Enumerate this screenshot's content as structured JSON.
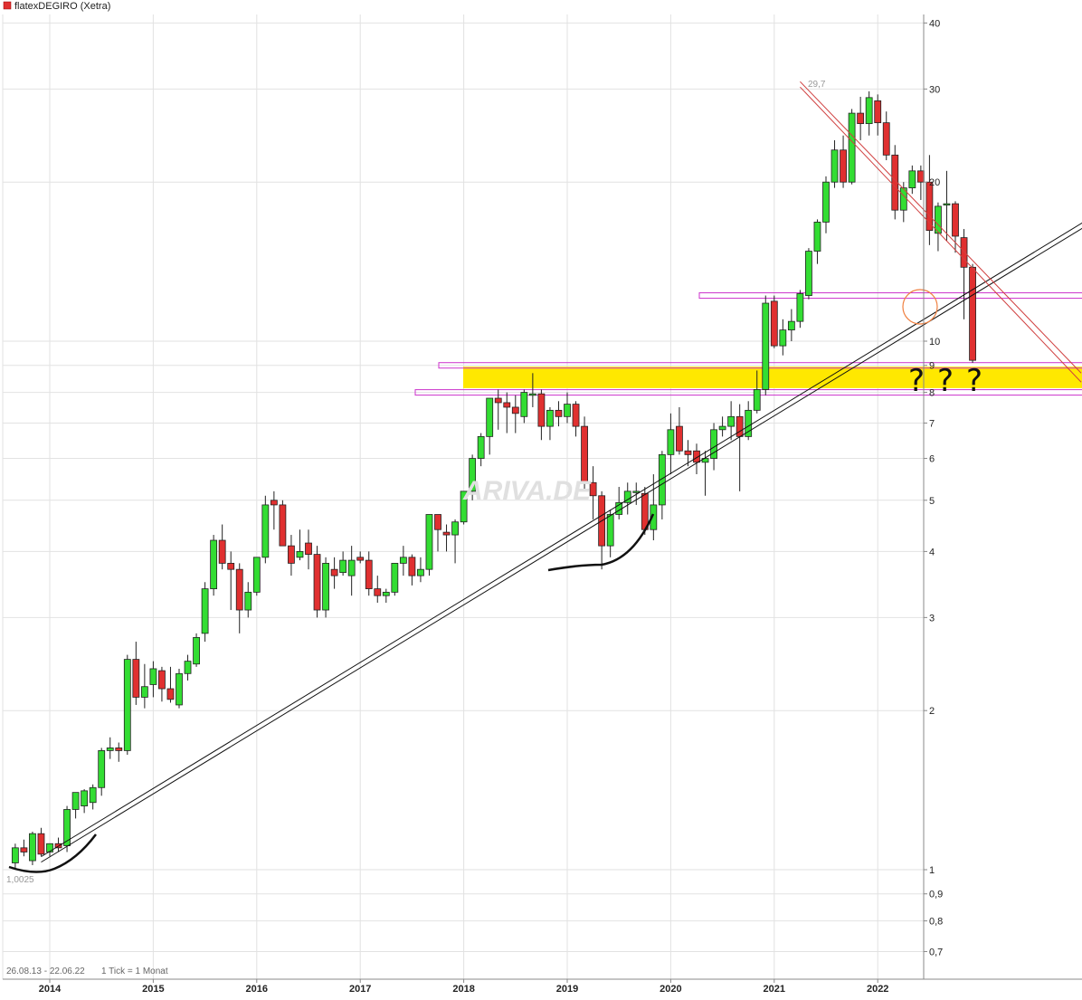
{
  "title": "flatexDEGIRO (Xetra)",
  "footer": {
    "range": "26.08.13 - 22.06.22",
    "tick": "1 Tick = 1 Monat"
  },
  "watermark": "ARIVA.DE",
  "question_marks": [
    "?",
    "?",
    "?"
  ],
  "colors": {
    "up": "#33dd33",
    "down": "#e03030",
    "zone": "#ffe800",
    "magenta": "#cc33cc",
    "redline": "#d04040",
    "circle": "#f08040"
  },
  "chart_data": {
    "type": "candlestick",
    "title": "flatexDEGIRO (Xetra)",
    "y_scale": "log",
    "ylim": [
      0.65,
      42
    ],
    "y_ticks": [
      40,
      30,
      20,
      10,
      9,
      8,
      7,
      6,
      5,
      4,
      3,
      2,
      1,
      0.9,
      0.8,
      0.7
    ],
    "y_tick_labels": [
      "40",
      "30",
      "20",
      "10",
      "9",
      "8",
      "7",
      "6",
      "5",
      "4",
      "3",
      "2",
      "1",
      "0,9",
      "0,8",
      "0,7"
    ],
    "x_ticks": [
      "2014",
      "2015",
      "2016",
      "2017",
      "2018",
      "2019",
      "2020",
      "2021",
      "2022"
    ],
    "start_month": "2013-09",
    "annotations": {
      "low_label": "1,0025",
      "high_label": "29,7"
    },
    "ohlc": [
      [
        1.03,
        1.12,
        1.0025,
        1.1
      ],
      [
        1.1,
        1.14,
        1.06,
        1.08
      ],
      [
        1.04,
        1.18,
        1.02,
        1.17
      ],
      [
        1.17,
        1.2,
        1.06,
        1.07
      ],
      [
        1.08,
        1.12,
        1.06,
        1.12
      ],
      [
        1.12,
        1.15,
        1.08,
        1.1
      ],
      [
        1.11,
        1.32,
        1.08,
        1.3
      ],
      [
        1.3,
        1.4,
        1.25,
        1.4
      ],
      [
        1.32,
        1.42,
        1.28,
        1.41
      ],
      [
        1.34,
        1.45,
        1.3,
        1.43
      ],
      [
        1.43,
        1.7,
        1.38,
        1.68
      ],
      [
        1.68,
        1.78,
        1.62,
        1.7
      ],
      [
        1.7,
        1.74,
        1.6,
        1.68
      ],
      [
        1.68,
        2.55,
        1.65,
        2.5
      ],
      [
        2.5,
        2.7,
        2.05,
        2.12
      ],
      [
        2.12,
        2.45,
        2.02,
        2.22
      ],
      [
        2.24,
        2.48,
        2.12,
        2.4
      ],
      [
        2.38,
        2.42,
        2.08,
        2.2
      ],
      [
        2.2,
        2.42,
        2.07,
        2.1
      ],
      [
        2.05,
        2.4,
        2.02,
        2.35
      ],
      [
        2.35,
        2.55,
        2.28,
        2.48
      ],
      [
        2.45,
        2.8,
        2.42,
        2.75
      ],
      [
        2.8,
        3.5,
        2.7,
        3.4
      ],
      [
        3.4,
        4.3,
        3.3,
        4.2
      ],
      [
        4.2,
        4.5,
        3.7,
        3.8
      ],
      [
        3.8,
        4.0,
        3.1,
        3.7
      ],
      [
        3.7,
        3.8,
        2.8,
        3.1
      ],
      [
        3.1,
        3.5,
        3.0,
        3.35
      ],
      [
        3.35,
        3.9,
        3.3,
        3.9
      ],
      [
        3.9,
        5.1,
        3.8,
        4.9
      ],
      [
        5.0,
        5.2,
        4.4,
        4.9
      ],
      [
        4.9,
        5.0,
        4.3,
        4.1
      ],
      [
        4.1,
        4.3,
        3.6,
        3.8
      ],
      [
        3.9,
        4.4,
        3.85,
        4.0
      ],
      [
        4.15,
        4.4,
        3.7,
        3.95
      ],
      [
        3.95,
        4.1,
        3.0,
        3.1
      ],
      [
        3.1,
        3.9,
        3.0,
        3.8
      ],
      [
        3.7,
        3.9,
        3.4,
        3.6
      ],
      [
        3.65,
        4.0,
        3.6,
        3.85
      ],
      [
        3.6,
        4.1,
        3.3,
        3.85
      ],
      [
        3.9,
        4.0,
        3.8,
        3.85
      ],
      [
        3.85,
        4.0,
        3.3,
        3.4
      ],
      [
        3.4,
        3.6,
        3.2,
        3.3
      ],
      [
        3.3,
        3.4,
        3.2,
        3.35
      ],
      [
        3.35,
        3.8,
        3.3,
        3.8
      ],
      [
        3.8,
        4.1,
        3.6,
        3.9
      ],
      [
        3.9,
        3.95,
        3.45,
        3.6
      ],
      [
        3.6,
        3.9,
        3.5,
        3.7
      ],
      [
        3.7,
        4.7,
        3.6,
        4.7
      ],
      [
        4.7,
        4.7,
        4.0,
        4.4
      ],
      [
        4.35,
        4.5,
        4.0,
        4.3
      ],
      [
        4.3,
        4.6,
        3.8,
        4.55
      ],
      [
        4.55,
        5.2,
        4.5,
        5.2
      ],
      [
        5.2,
        6.1,
        5.0,
        6.0
      ],
      [
        6.0,
        6.7,
        5.8,
        6.6
      ],
      [
        6.6,
        7.8,
        6.1,
        7.8
      ],
      [
        7.8,
        8.1,
        6.8,
        7.65
      ],
      [
        7.65,
        8.0,
        6.7,
        7.5
      ],
      [
        7.5,
        7.9,
        6.7,
        7.3
      ],
      [
        7.2,
        8.1,
        7.0,
        8.0
      ],
      [
        7.9,
        8.7,
        7.5,
        7.95
      ],
      [
        7.95,
        8.1,
        6.5,
        6.9
      ],
      [
        6.9,
        7.5,
        6.5,
        7.4
      ],
      [
        7.4,
        7.7,
        6.9,
        7.2
      ],
      [
        7.2,
        8.0,
        7.0,
        7.6
      ],
      [
        7.6,
        7.7,
        6.6,
        6.9
      ],
      [
        6.9,
        7.2,
        5.2,
        5.4
      ],
      [
        5.4,
        5.8,
        4.6,
        5.1
      ],
      [
        5.1,
        5.2,
        3.7,
        4.1
      ],
      [
        4.1,
        4.8,
        3.9,
        4.7
      ],
      [
        4.7,
        5.3,
        4.6,
        4.95
      ],
      [
        4.95,
        5.4,
        4.7,
        5.2
      ],
      [
        5.2,
        5.4,
        4.9,
        5.2
      ],
      [
        5.15,
        5.3,
        4.3,
        4.4
      ],
      [
        4.4,
        5.6,
        4.2,
        4.9
      ],
      [
        4.9,
        6.2,
        4.6,
        6.1
      ],
      [
        6.1,
        7.3,
        5.6,
        6.8
      ],
      [
        6.9,
        7.5,
        6.1,
        6.2
      ],
      [
        6.2,
        6.5,
        5.8,
        6.1
      ],
      [
        6.2,
        6.4,
        5.6,
        5.9
      ],
      [
        5.9,
        6.2,
        5.1,
        6.0
      ],
      [
        6.0,
        7.0,
        5.7,
        6.8
      ],
      [
        6.8,
        7.2,
        6.6,
        6.9
      ],
      [
        6.9,
        7.7,
        6.5,
        7.2
      ],
      [
        7.2,
        7.6,
        5.2,
        6.6
      ],
      [
        6.6,
        7.7,
        6.5,
        7.4
      ],
      [
        7.4,
        8.8,
        7.3,
        8.1
      ],
      [
        8.1,
        12.2,
        7.9,
        11.8
      ],
      [
        11.9,
        12.2,
        9.7,
        9.8
      ],
      [
        9.8,
        11.0,
        9.4,
        10.5
      ],
      [
        10.5,
        11.5,
        10.0,
        10.9
      ],
      [
        10.9,
        12.5,
        10.6,
        12.3
      ],
      [
        12.2,
        15.0,
        12.0,
        14.8
      ],
      [
        14.8,
        17.0,
        14.0,
        16.8
      ],
      [
        16.8,
        20.5,
        16.0,
        20.0
      ],
      [
        20.0,
        24.0,
        19.5,
        23.0
      ],
      [
        23.0,
        24.5,
        19.5,
        20.0
      ],
      [
        20.0,
        27.5,
        19.8,
        27.0
      ],
      [
        27.0,
        29.0,
        24.0,
        25.8
      ],
      [
        25.8,
        29.7,
        24.5,
        28.9
      ],
      [
        28.5,
        29.3,
        24.5,
        25.9
      ],
      [
        25.9,
        27.2,
        22.0,
        22.5
      ],
      [
        22.5,
        23.5,
        17.0,
        17.7
      ],
      [
        17.7,
        20.0,
        16.8,
        19.5
      ],
      [
        19.5,
        21.5,
        19.0,
        21.0
      ],
      [
        21.0,
        21.5,
        18.5,
        20.0
      ],
      [
        20.0,
        22.5,
        15.2,
        16.2
      ],
      [
        16.0,
        18.3,
        14.8,
        18.0
      ],
      [
        18.1,
        21.0,
        15.5,
        18.2
      ],
      [
        18.2,
        18.4,
        14.7,
        15.8
      ],
      [
        15.7,
        16.3,
        11.0,
        13.8
      ],
      [
        13.8,
        14.0,
        9.1,
        9.2
      ]
    ],
    "support_trendline": {
      "from": [
        "2013-12",
        1.05
      ],
      "to": [
        "2022-12",
        15.0
      ]
    },
    "resistance_trendline": {
      "from": [
        "2021-04",
        30.5
      ],
      "to": [
        "2022-12",
        8.5
      ]
    },
    "horizontal_levels": [
      12.2,
      9.0,
      8.0
    ],
    "highlight_zone": [
      8.15,
      8.95
    ]
  }
}
